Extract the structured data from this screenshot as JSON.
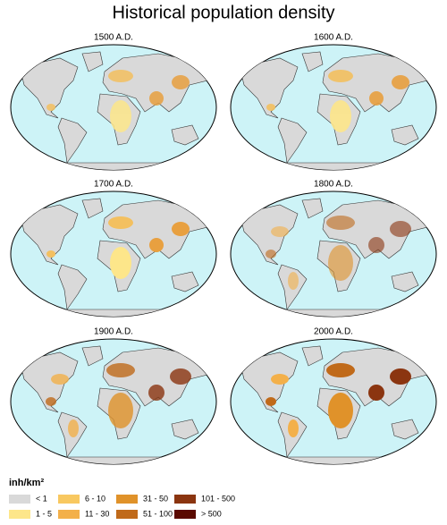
{
  "title": "Historical population density",
  "maps": [
    {
      "label": "1500 A.D."
    },
    {
      "label": "1600 A.D."
    },
    {
      "label": "1700 A.D."
    },
    {
      "label": "1800 A.D."
    },
    {
      "label": "1900 A.D."
    },
    {
      "label": "2000 A.D."
    }
  ],
  "legend": {
    "unit": "inh/km²",
    "items": [
      "< 1",
      "1 - 5",
      "6 - 10",
      "11 - 30",
      "31 - 50",
      "51 - 100",
      "101 - 500",
      "> 500"
    ]
  }
}
